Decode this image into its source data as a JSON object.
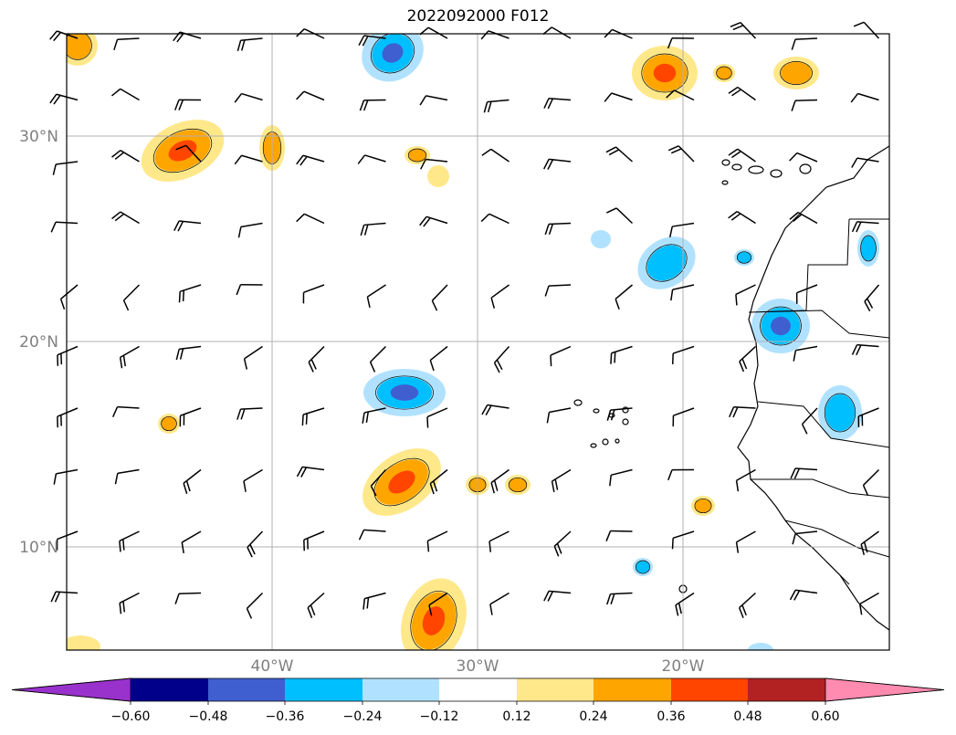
{
  "title": "2022092000 F012",
  "map": {
    "lat_labels": [
      "30°N",
      "20°N",
      "10°N"
    ],
    "lon_labels": [
      "40°W",
      "30°W",
      "20°W"
    ],
    "grid": true
  },
  "colorbar": {
    "tick_labels": [
      "−0.60",
      "−0.48",
      "−0.36",
      "−0.24",
      "−0.12",
      "0.12",
      "0.24",
      "0.36",
      "0.48",
      "0.60"
    ],
    "colors": [
      "#9932cc",
      "#00008b",
      "#3f5fd0",
      "#00bfff",
      "#b0e2ff",
      "#ffffff",
      "#ffe88a",
      "#ffa500",
      "#ff4500",
      "#b22222",
      "#ff8bb0"
    ],
    "extend": "both"
  },
  "fields": {
    "positive_colors": [
      "#ffe88a",
      "#ffa500",
      "#ff4500"
    ],
    "negative_colors": [
      "#b0e2ff",
      "#00bfff",
      "#3f5fd0"
    ]
  },
  "icons": {
    "wind_barb": "wind-barb-icon",
    "coastline": "coastline"
  }
}
